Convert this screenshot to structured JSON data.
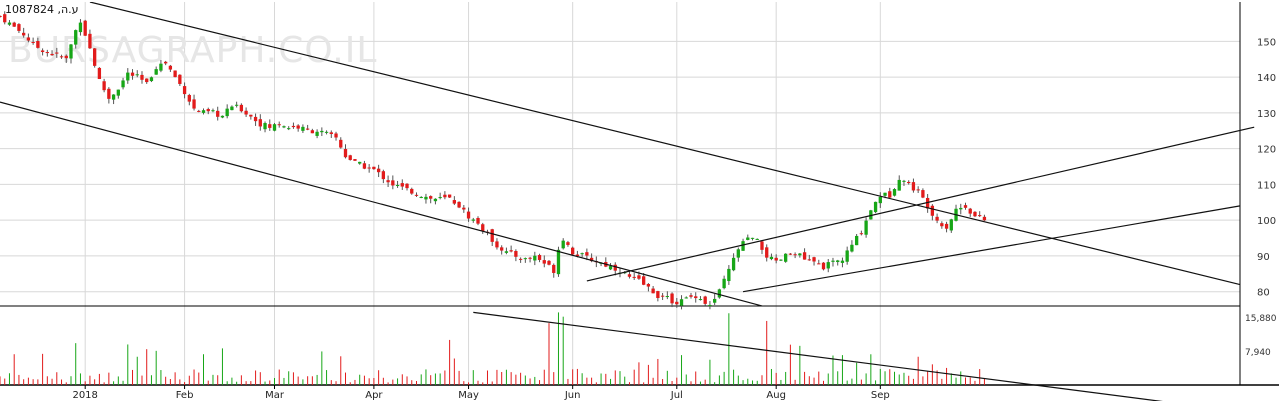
{
  "chart_data": {
    "type": "candlestick",
    "ticker_label": "1087824 ,ע.ה",
    "watermark": "BURSAGRAPH.CO.IL",
    "y_price_ticks": [
      80,
      90,
      100,
      110,
      120,
      130,
      140,
      150
    ],
    "y_price_range": [
      76,
      161
    ],
    "y_volume_ticks": [
      "7,940",
      "15,880"
    ],
    "y_volume_range": [
      0,
      18500
    ],
    "x_range": [
      0,
      262
    ],
    "x_ticks": [
      {
        "label": "2018",
        "pos": 18
      },
      {
        "label": "Feb",
        "pos": 39
      },
      {
        "label": "Mar",
        "pos": 58
      },
      {
        "label": "Apr",
        "pos": 79
      },
      {
        "label": "May",
        "pos": 99
      },
      {
        "label": "Jun",
        "pos": 121
      },
      {
        "label": "Jul",
        "pos": 143
      },
      {
        "label": "Aug",
        "pos": 164
      },
      {
        "label": "Sep",
        "pos": 186
      }
    ],
    "up_color": "#17a617",
    "down_color": "#e21b1b",
    "close_path": [
      [
        0,
        157
      ],
      [
        3,
        154
      ],
      [
        5,
        152
      ],
      [
        7,
        149
      ],
      [
        10,
        147
      ],
      [
        12,
        146
      ],
      [
        14,
        145
      ],
      [
        16,
        153
      ],
      [
        17,
        156
      ],
      [
        19,
        148
      ],
      [
        21,
        139
      ],
      [
        23,
        134
      ],
      [
        25,
        137
      ],
      [
        27,
        141
      ],
      [
        29,
        140
      ],
      [
        31,
        138
      ],
      [
        33,
        143
      ],
      [
        35,
        144
      ],
      [
        37,
        140
      ],
      [
        39,
        136
      ],
      [
        41,
        131
      ],
      [
        43,
        130
      ],
      [
        45,
        130
      ],
      [
        47,
        129
      ],
      [
        49,
        132
      ],
      [
        51,
        131
      ],
      [
        53,
        129
      ],
      [
        55,
        127
      ],
      [
        57,
        126
      ],
      [
        59,
        127
      ],
      [
        61,
        126
      ],
      [
        63,
        126
      ],
      [
        65,
        125
      ],
      [
        67,
        125
      ],
      [
        69,
        124
      ],
      [
        71,
        123
      ],
      [
        73,
        118
      ],
      [
        75,
        116
      ],
      [
        77,
        115
      ],
      [
        79,
        114
      ],
      [
        81,
        112
      ],
      [
        83,
        110
      ],
      [
        85,
        109
      ],
      [
        87,
        108
      ],
      [
        89,
        107
      ],
      [
        91,
        106
      ],
      [
        93,
        106
      ],
      [
        95,
        106
      ],
      [
        97,
        104
      ],
      [
        99,
        101
      ],
      [
        101,
        99
      ],
      [
        103,
        96
      ],
      [
        105,
        93
      ],
      [
        107,
        91
      ],
      [
        109,
        90
      ],
      [
        111,
        89
      ],
      [
        113,
        90
      ],
      [
        115,
        88
      ],
      [
        117,
        86
      ],
      [
        118,
        92
      ],
      [
        119,
        95
      ],
      [
        121,
        91
      ],
      [
        123,
        90
      ],
      [
        125,
        89
      ],
      [
        127,
        88
      ],
      [
        129,
        87
      ],
      [
        131,
        86
      ],
      [
        133,
        84
      ],
      [
        135,
        83
      ],
      [
        137,
        81
      ],
      [
        139,
        79
      ],
      [
        141,
        78
      ],
      [
        143,
        77
      ],
      [
        145,
        78
      ],
      [
        147,
        79
      ],
      [
        149,
        77
      ],
      [
        150,
        76
      ],
      [
        152,
        80
      ],
      [
        154,
        86
      ],
      [
        156,
        92
      ],
      [
        158,
        95
      ],
      [
        160,
        94
      ],
      [
        162,
        90
      ],
      [
        164,
        88
      ],
      [
        166,
        90
      ],
      [
        168,
        91
      ],
      [
        170,
        89
      ],
      [
        172,
        88
      ],
      [
        174,
        87
      ],
      [
        176,
        88
      ],
      [
        178,
        89
      ],
      [
        180,
        93
      ],
      [
        182,
        97
      ],
      [
        184,
        103
      ],
      [
        186,
        107
      ],
      [
        188,
        107
      ],
      [
        190,
        112
      ],
      [
        192,
        110
      ],
      [
        194,
        108
      ],
      [
        196,
        104
      ],
      [
        198,
        100
      ],
      [
        200,
        98
      ],
      [
        202,
        103
      ],
      [
        204,
        104
      ],
      [
        206,
        101
      ],
      [
        208,
        100
      ]
    ],
    "channels": [
      {
        "from": [
          19,
          161
        ],
        "to": [
          262,
          82
        ]
      },
      {
        "from": [
          0,
          133
        ],
        "to": [
          178,
          70
        ]
      },
      {
        "from": [
          124,
          83
        ],
        "to": [
          265,
          126
        ]
      },
      {
        "from": [
          157,
          80
        ],
        "to": [
          262,
          104
        ]
      }
    ],
    "volume_trendline": {
      "from": [
        100,
        17000
      ],
      "to": [
        250,
        -4500
      ]
    }
  }
}
